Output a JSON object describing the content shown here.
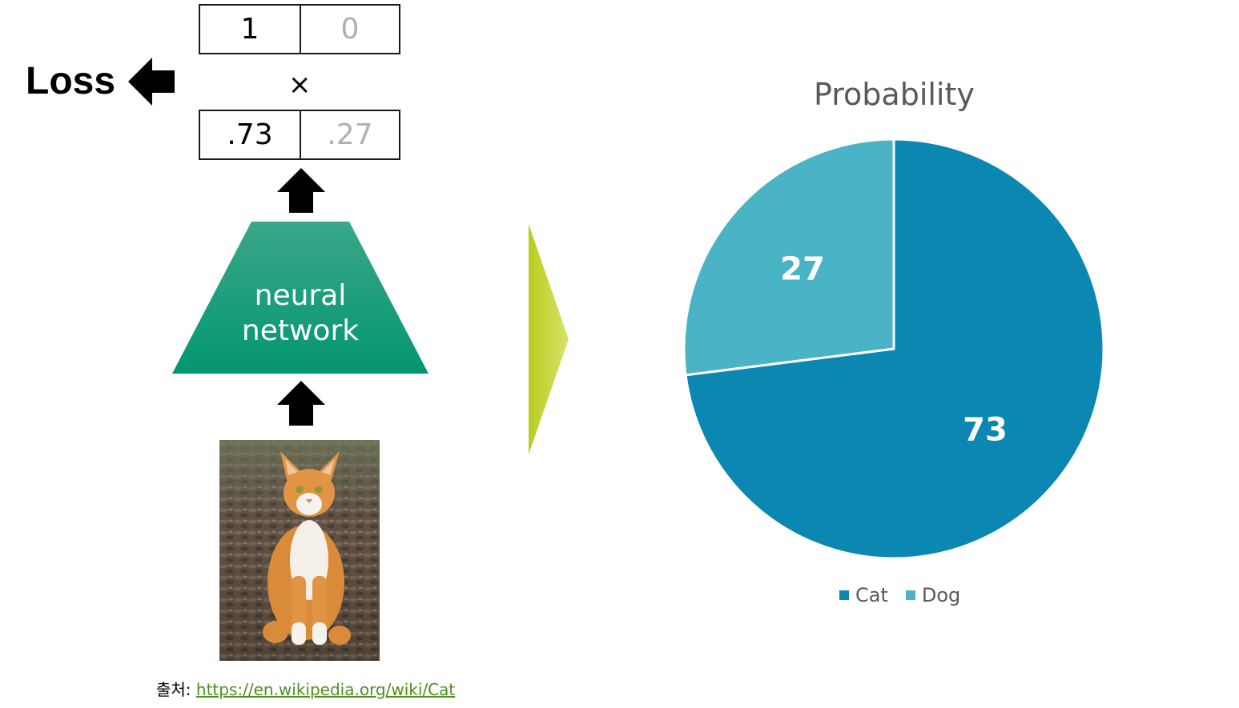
{
  "loss": {
    "label": "Loss"
  },
  "target": {
    "cat": "1",
    "dog": "0"
  },
  "operator": "×",
  "prediction": {
    "cat": ".73",
    "dog": ".27"
  },
  "network": {
    "line1": "neural",
    "line2": "network"
  },
  "source": {
    "prefix": "출처: ",
    "url": "https://en.wikipedia.org/wiki/Cat"
  },
  "colors": {
    "cat": "#0b87b2",
    "dog": "#4bb3c6",
    "network": "#069a73",
    "arrow": "#c6d52a",
    "muted": "#b0b0b0"
  },
  "chart_data": {
    "type": "pie",
    "title": "Probability",
    "categories": [
      "Cat",
      "Dog"
    ],
    "values": [
      73,
      27
    ],
    "data_labels": [
      "73",
      "27"
    ],
    "legend": "bottom"
  }
}
